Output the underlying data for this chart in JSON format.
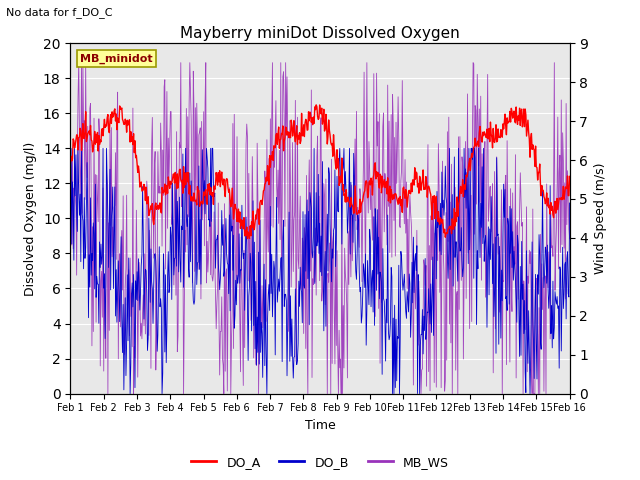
{
  "title": "Mayberry miniDot Dissolved Oxygen",
  "no_data_text": "No data for f_DO_C",
  "xlabel": "Time",
  "ylabel_left": "Dissolved Oxygen (mg/l)",
  "ylabel_right": "Wind Speed (m/s)",
  "ylim_left": [
    0,
    20
  ],
  "ylim_right": [
    0.0,
    9.0
  ],
  "yticks_left": [
    0,
    2,
    4,
    6,
    8,
    10,
    12,
    14,
    16,
    18,
    20
  ],
  "yticks_right": [
    0.0,
    1.0,
    2.0,
    3.0,
    4.0,
    5.0,
    6.0,
    7.0,
    8.0,
    9.0
  ],
  "xtick_labels": [
    "Feb 1",
    "Feb 2",
    "Feb 3",
    "Feb 4",
    "Feb 5",
    "Feb 6",
    "Feb 7",
    "Feb 8",
    "Feb 9",
    "Feb 10",
    "Feb 11",
    "Feb 12",
    "Feb 13",
    "Feb 14",
    "Feb 15",
    "Feb 16"
  ],
  "bg_color": "#e8e8e8",
  "color_DO_A": "#ff0000",
  "color_DO_B": "#0000cc",
  "color_MB_WS": "#9933bb",
  "legend_label_A": "DO_A",
  "legend_label_B": "DO_B",
  "legend_label_WS": "MB_WS",
  "box_label": "MB_minidot",
  "box_facecolor": "#ffff99",
  "box_edgecolor": "#999900"
}
